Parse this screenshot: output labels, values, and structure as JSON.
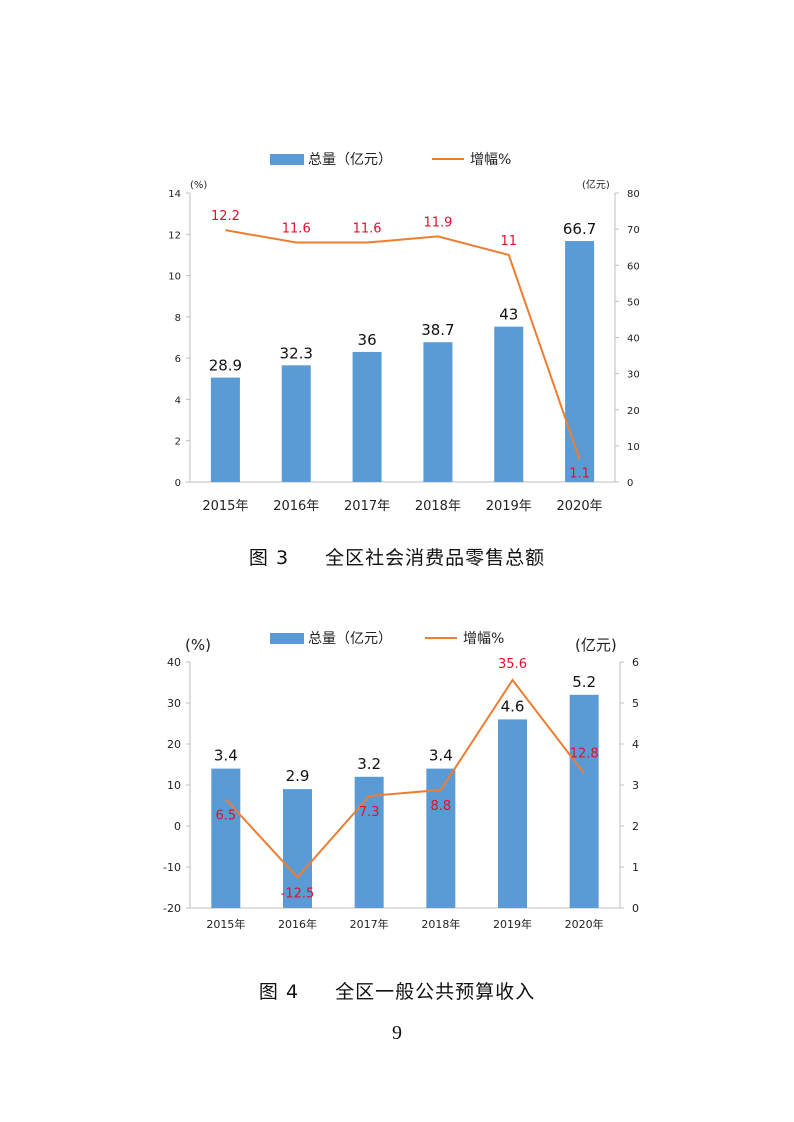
{
  "chart_data": [
    {
      "type": "bar",
      "legend": {
        "bar_label": "总量（亿元）",
        "line_label": "增幅%",
        "position": "top"
      },
      "y_left_unit": "(%)",
      "y_right_unit": "(亿元)",
      "y_left_ticks": [
        "0",
        "2",
        "4",
        "6",
        "8",
        "10",
        "12",
        "14"
      ],
      "y_right_ticks": [
        "0",
        "10",
        "20",
        "30",
        "40",
        "50",
        "60",
        "70",
        "80"
      ],
      "ylim_left": [
        0,
        14
      ],
      "ylim_right": [
        0,
        80
      ],
      "categories": [
        "2015年",
        "2016年",
        "2017年",
        "2018年",
        "2019年",
        "2020年"
      ],
      "series": [
        {
          "name": "总量（亿元）",
          "kind": "bar",
          "axis": "right",
          "values": [
            28.9,
            32.3,
            36,
            38.7,
            43,
            66.7
          ],
          "labels": [
            "28.9",
            "32.3",
            "36",
            "38.7",
            "43",
            "66.7"
          ]
        },
        {
          "name": "增幅%",
          "kind": "line",
          "axis": "left",
          "values": [
            12.2,
            11.6,
            11.6,
            11.9,
            11,
            1.1
          ],
          "labels": [
            "12.2",
            "11.6",
            "11.6",
            "11.9",
            "11",
            "1.1"
          ]
        }
      ],
      "colors": {
        "bar": "#5b9bd5",
        "line": "#ed7d31",
        "line_label": "#e0102a",
        "bar_label": "#111111"
      },
      "caption": {
        "number": "图 3",
        "title": "全区社会消费品零售总额"
      }
    },
    {
      "type": "bar",
      "legend": {
        "bar_label": "总量（亿元）",
        "line_label": "增幅%",
        "position": "top"
      },
      "y_left_unit": "(%)",
      "y_right_unit": "(亿元)",
      "y_left_ticks": [
        "-20",
        "-10",
        "0",
        "10",
        "20",
        "30",
        "40"
      ],
      "y_right_ticks": [
        "0",
        "1",
        "2",
        "3",
        "4",
        "5",
        "6"
      ],
      "ylim_left": [
        -20,
        40
      ],
      "ylim_right": [
        0,
        6
      ],
      "categories": [
        "2015年",
        "2016年",
        "2017年",
        "2018年",
        "2019年",
        "2020年"
      ],
      "series": [
        {
          "name": "总量（亿元）",
          "kind": "bar",
          "axis": "right",
          "values": [
            3.4,
            2.9,
            3.2,
            3.4,
            4.6,
            5.2
          ],
          "labels": [
            "3.4",
            "2.9",
            "3.2",
            "3.4",
            "4.6",
            "5.2"
          ]
        },
        {
          "name": "增幅%",
          "kind": "line",
          "axis": "left",
          "values": [
            6.5,
            -12.5,
            7.3,
            8.8,
            35.6,
            12.8
          ],
          "labels": [
            "6.5",
            "-12.5",
            "7.3",
            "8.8",
            "35.6",
            "12.8"
          ]
        }
      ],
      "colors": {
        "bar": "#5b9bd5",
        "line": "#ed7d31",
        "line_label": "#e0102a",
        "bar_label": "#111111"
      },
      "caption": {
        "number": "图 4",
        "title": "全区一般公共预算收入"
      }
    }
  ],
  "page_number": "9"
}
